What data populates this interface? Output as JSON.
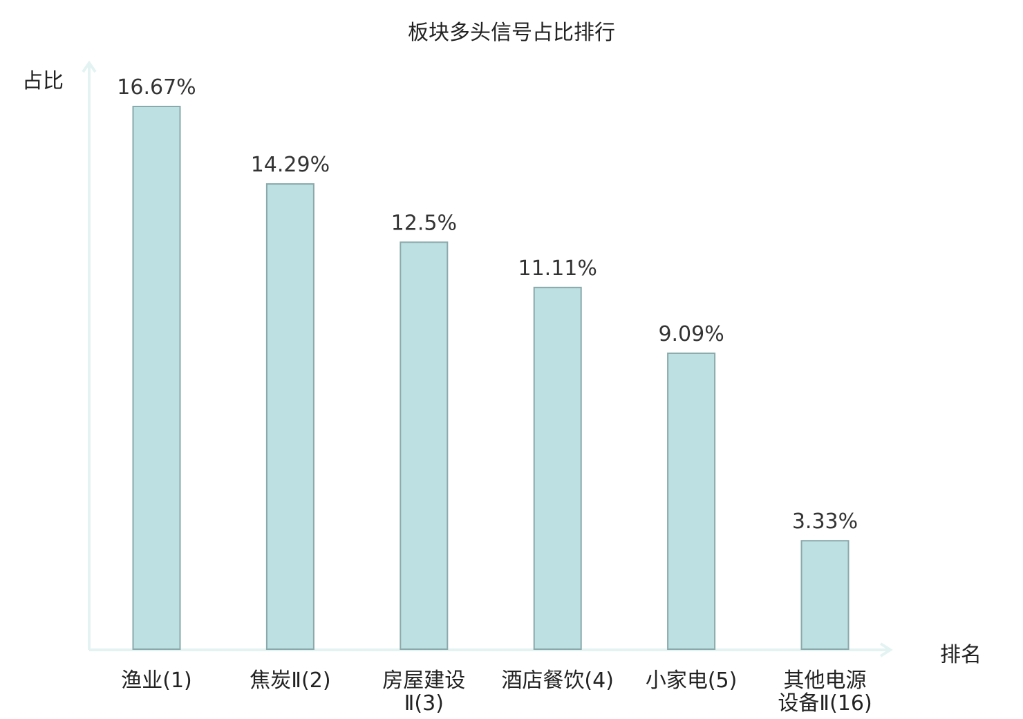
{
  "chart_data": {
    "type": "bar",
    "title": "板块多头信号占比排行",
    "xlabel": "排名",
    "ylabel": "占比",
    "categories": [
      [
        "渔业(1)"
      ],
      [
        "焦炭Ⅱ(2)"
      ],
      [
        "房屋建设",
        "Ⅱ(3)"
      ],
      [
        "酒店餐饮(4)"
      ],
      [
        "小家电(5)"
      ],
      [
        "其他电源",
        "设备Ⅱ(16)"
      ]
    ],
    "values": [
      16.67,
      14.29,
      12.5,
      11.11,
      9.09,
      3.33
    ],
    "value_labels": [
      "16.67%",
      "14.29%",
      "12.5%",
      "11.11%",
      "9.09%",
      "3.33%"
    ],
    "highlight_index": 5,
    "ylim": [
      0,
      16.67
    ],
    "grid": false,
    "colors": {
      "bar_fill": "#bde0e3",
      "bar_stroke": "#8aa9ab",
      "axis": "#e3f3f1",
      "highlight_text": "#e8191c",
      "text": "#222222"
    }
  }
}
